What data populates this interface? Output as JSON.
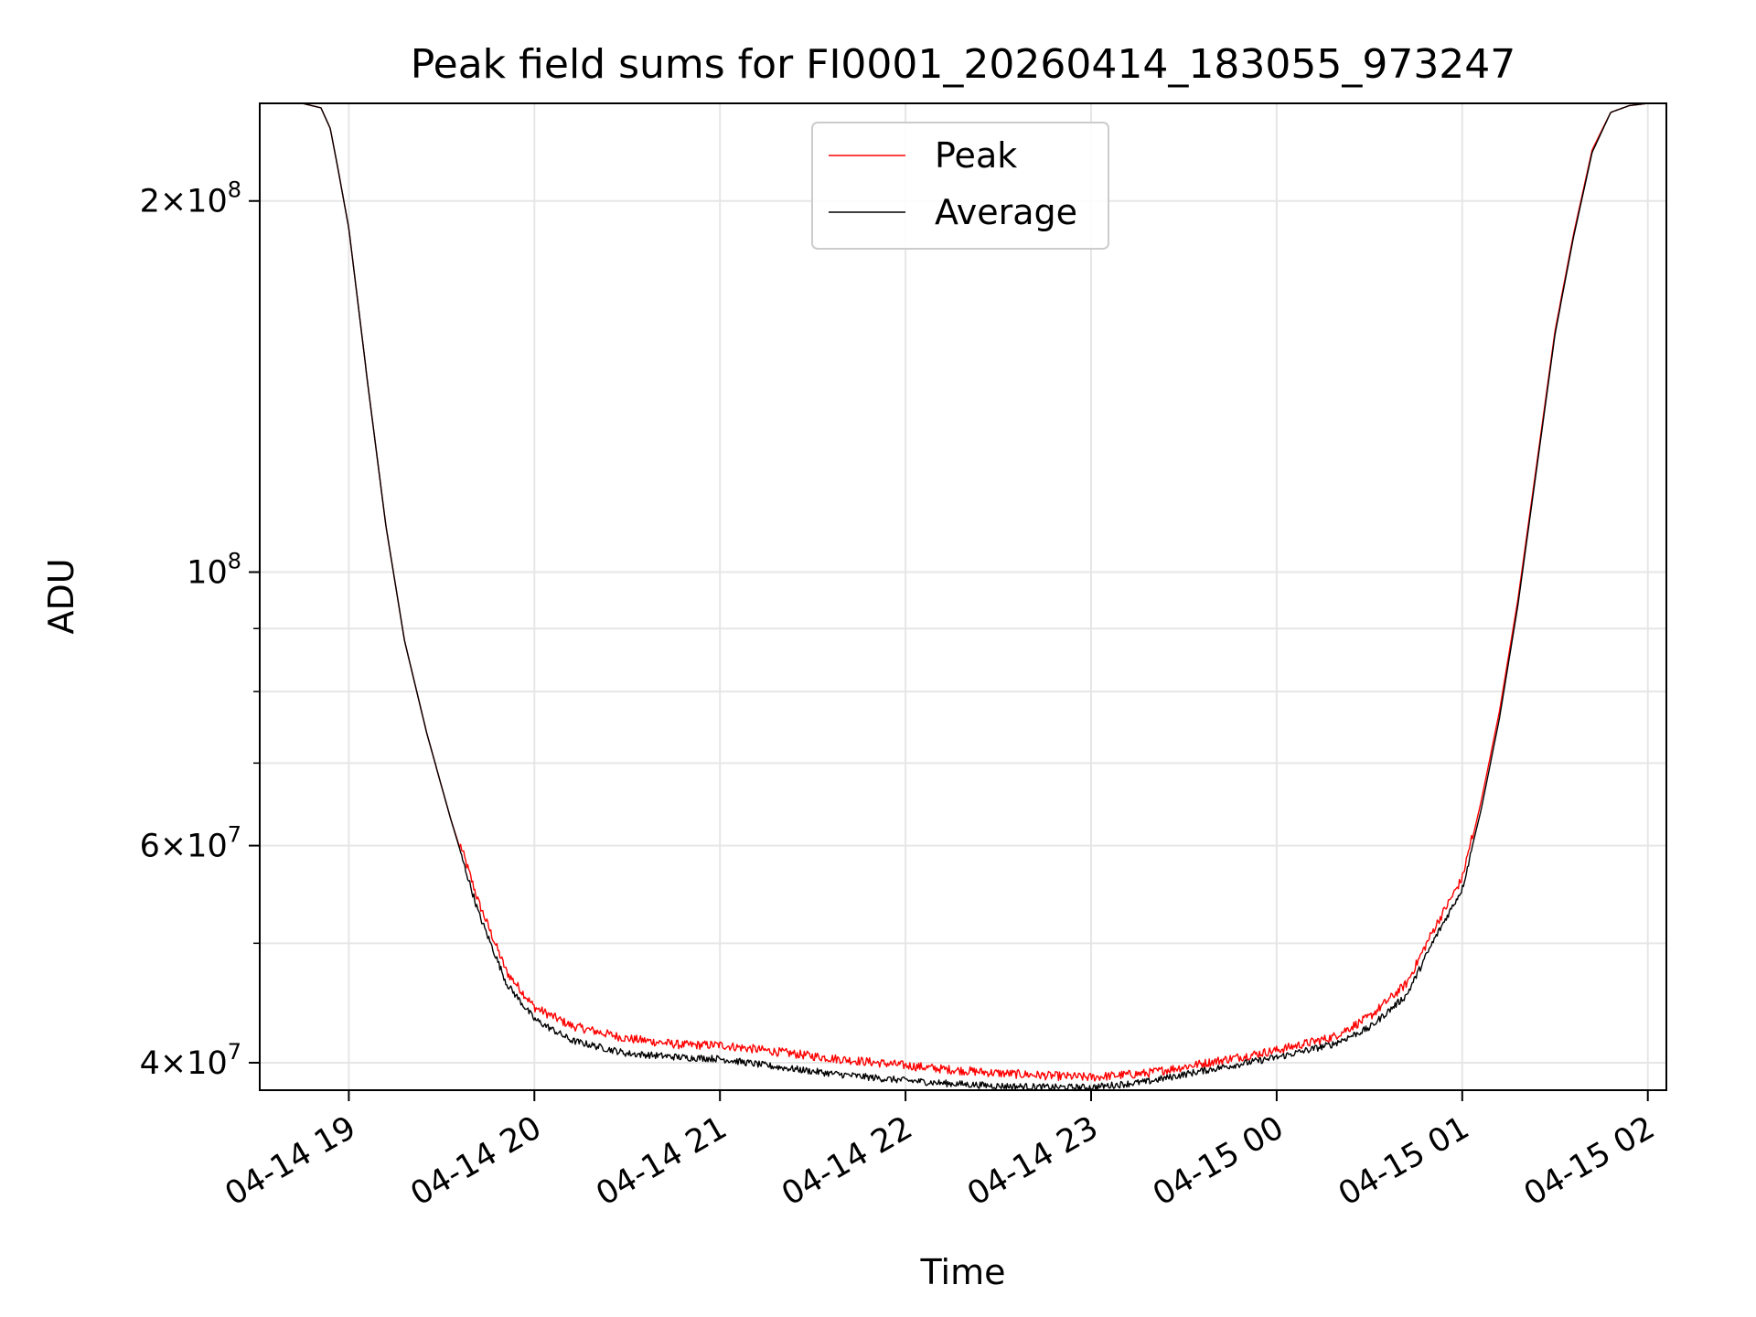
{
  "chart_data": {
    "type": "line",
    "title": "Peak field sums for FI0001_20260414_183055_973247",
    "xlabel": "Time",
    "ylabel": "ADU",
    "yscale": "log",
    "grid": true,
    "legend_position": "upper-center",
    "x_range_hours": [
      -0.48,
      7.1
    ],
    "ylim": [
      38000000,
      240000000
    ],
    "x_ticks": [
      {
        "hour": 0,
        "label": "04-14 19"
      },
      {
        "hour": 1,
        "label": "04-14 20"
      },
      {
        "hour": 2,
        "label": "04-14 21"
      },
      {
        "hour": 3,
        "label": "04-14 22"
      },
      {
        "hour": 4,
        "label": "04-14 23"
      },
      {
        "hour": 5,
        "label": "04-15 00"
      },
      {
        "hour": 6,
        "label": "04-15 01"
      },
      {
        "hour": 7,
        "label": "04-15 02"
      }
    ],
    "y_ticks": [
      {
        "value": 40000000,
        "mant": "4",
        "exp": "7"
      },
      {
        "value": 60000000,
        "mant": "6",
        "exp": "7"
      },
      {
        "value": 100000000,
        "mant": "",
        "exp": "8"
      },
      {
        "value": 200000000,
        "mant": "2",
        "exp": "8"
      }
    ],
    "y_minor_ticks": [
      50000000,
      70000000,
      80000000,
      90000000
    ],
    "series": [
      {
        "name": "Peak",
        "color": "#ff0000",
        "x_hours": [
          -0.48,
          -0.25,
          -0.15,
          -0.1,
          -0.06,
          0,
          0.1,
          0.2,
          0.3,
          0.42,
          0.55,
          0.7,
          0.85,
          1.0,
          1.2,
          1.5,
          1.8,
          2.0,
          2.3,
          2.6,
          2.9,
          3.2,
          3.5,
          3.8,
          4.0,
          4.3,
          4.6,
          5.0,
          5.3,
          5.5,
          5.7,
          5.85,
          6.0,
          6.1,
          6.2,
          6.3,
          6.4,
          6.5,
          6.6,
          6.7,
          6.8,
          6.9,
          7.0,
          7.1
        ],
        "values": [
          240000000,
          240000000,
          238000000,
          229000000,
          213000000,
          190000000,
          143000000,
          109000000,
          88000000,
          74000000,
          63000000,
          53500000,
          47000000,
          44000000,
          42500000,
          41500000,
          41000000,
          41000000,
          40500000,
          40000000,
          39600000,
          39200000,
          38900000,
          38700000,
          38600000,
          38900000,
          39600000,
          40600000,
          41600000,
          43200000,
          46000000,
          51000000,
          56000000,
          65000000,
          77000000,
          95000000,
          122000000,
          157000000,
          188000000,
          220000000,
          236000000,
          239000000,
          240000000,
          240000000
        ]
      },
      {
        "name": "Average",
        "color": "#000000",
        "x_hours": [
          -0.48,
          -0.25,
          -0.15,
          -0.1,
          -0.06,
          0,
          0.1,
          0.2,
          0.3,
          0.42,
          0.55,
          0.7,
          0.85,
          1.0,
          1.2,
          1.5,
          1.8,
          2.0,
          2.3,
          2.6,
          2.9,
          3.2,
          3.5,
          3.8,
          4.0,
          4.3,
          4.6,
          5.0,
          5.3,
          5.5,
          5.7,
          5.85,
          6.0,
          6.1,
          6.2,
          6.3,
          6.4,
          6.5,
          6.6,
          6.7,
          6.8,
          6.9,
          7.0,
          7.1
        ],
        "values": [
          240000000,
          240000000,
          238000000,
          229000000,
          213000000,
          190000000,
          143000000,
          109000000,
          88000000,
          74000000,
          63000000,
          53000000,
          46500000,
          43500000,
          41800000,
          40800000,
          40500000,
          40400000,
          39800000,
          39300000,
          38900000,
          38600000,
          38400000,
          38300000,
          38300000,
          38700000,
          39500000,
          40500000,
          41500000,
          42800000,
          45500000,
          50500000,
          55500000,
          64000000,
          76000000,
          94000000,
          121000000,
          156000000,
          187000000,
          219000000,
          236000000,
          239000000,
          240000000,
          240000000
        ]
      }
    ]
  }
}
